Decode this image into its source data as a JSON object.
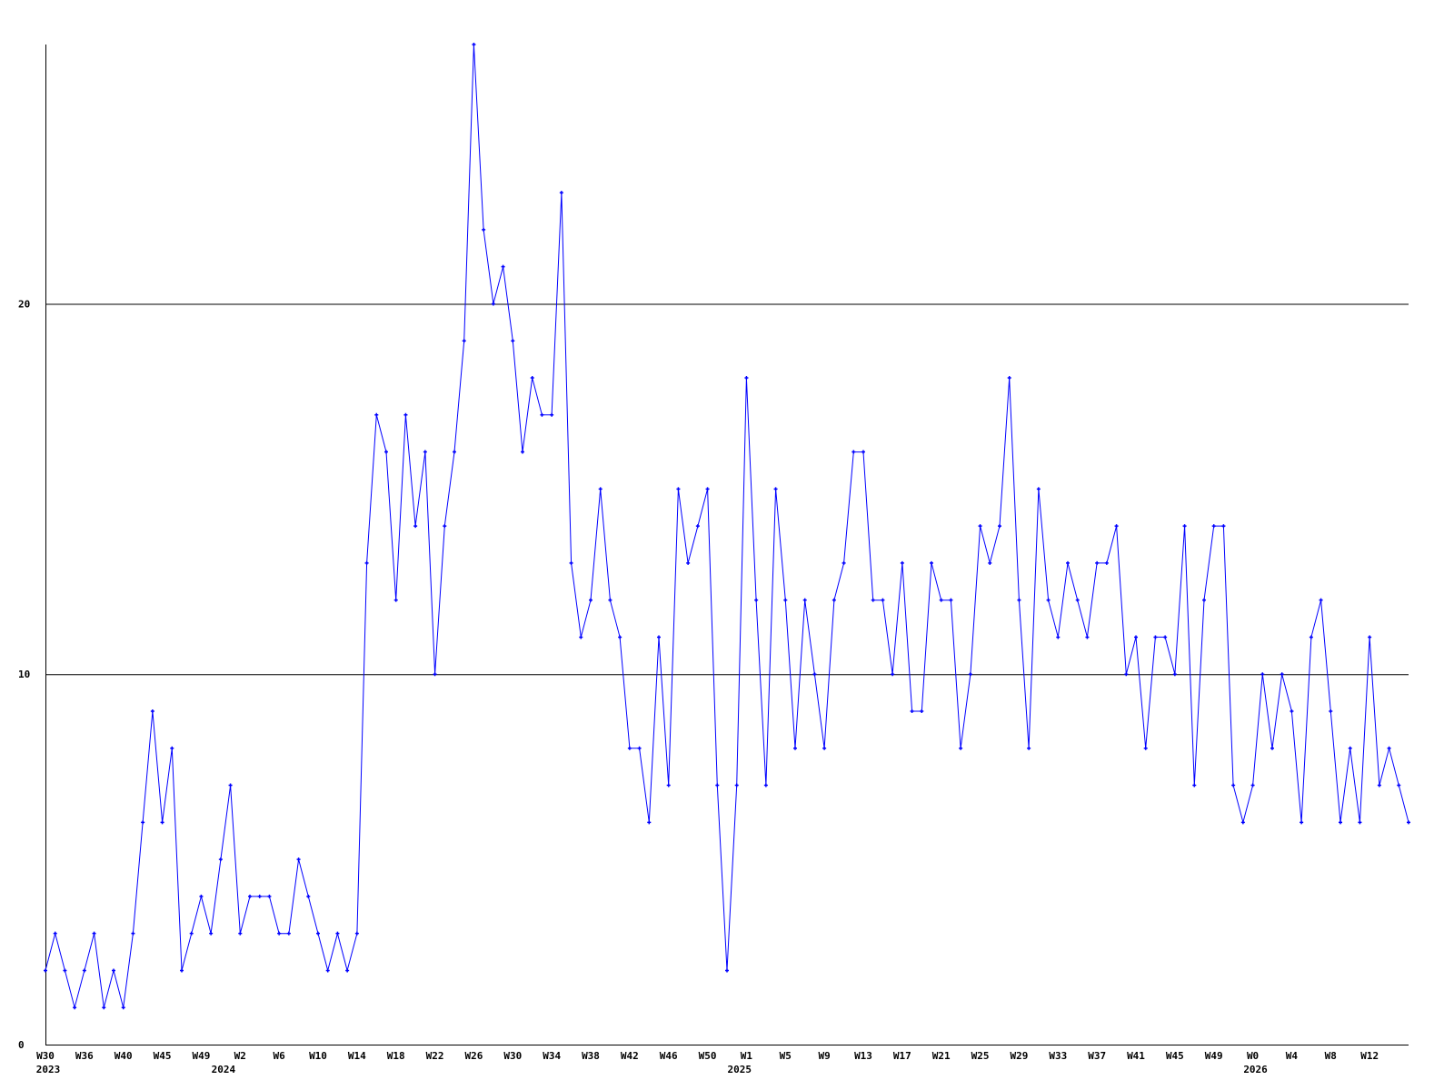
{
  "chart_data": {
    "type": "line",
    "title": "",
    "xlabel": "",
    "ylabel": "",
    "ylim": [
      0,
      27
    ],
    "yticks": [
      0,
      10,
      20
    ],
    "grid": "horizontal lines at 10 and 20",
    "line_color": "#0000ff",
    "axis_color": "#000000",
    "values": [
      2,
      3,
      2,
      1,
      2,
      3,
      1,
      2,
      1,
      3,
      6,
      9,
      6,
      8,
      2,
      3,
      4,
      3,
      5,
      7,
      3,
      4,
      4,
      4,
      3,
      3,
      5,
      4,
      3,
      2,
      3,
      2,
      3,
      13,
      17,
      16,
      12,
      17,
      14,
      16,
      10,
      14,
      16,
      19,
      27,
      22,
      20,
      21,
      19,
      16,
      18,
      17,
      17,
      23,
      13,
      11,
      12,
      15,
      12,
      11,
      8,
      8,
      6,
      11,
      7,
      15,
      13,
      14,
      15,
      7,
      2,
      7,
      18,
      12,
      7,
      15,
      12,
      8,
      12,
      10,
      8,
      12,
      13,
      16,
      16,
      12,
      12,
      10,
      13,
      9,
      9,
      13,
      12,
      12,
      8,
      10,
      14,
      13,
      14,
      18,
      12,
      8,
      15,
      12,
      11,
      13,
      12,
      11,
      13,
      13,
      14,
      10,
      11,
      8,
      11,
      11,
      10,
      14,
      7,
      12,
      14,
      14,
      7,
      6,
      7,
      10,
      8,
      10,
      9,
      6,
      11,
      12,
      9,
      6,
      8,
      6,
      11,
      7,
      8,
      7,
      6
    ],
    "xtick_labels": [
      {
        "index": 0,
        "label": "W30"
      },
      {
        "index": 4,
        "label": "W36"
      },
      {
        "index": 8,
        "label": "W40"
      },
      {
        "index": 12,
        "label": "W45"
      },
      {
        "index": 16,
        "label": "W49"
      },
      {
        "index": 20,
        "label": "W2"
      },
      {
        "index": 24,
        "label": "W6"
      },
      {
        "index": 28,
        "label": "W10"
      },
      {
        "index": 32,
        "label": "W14"
      },
      {
        "index": 36,
        "label": "W18"
      },
      {
        "index": 40,
        "label": "W22"
      },
      {
        "index": 44,
        "label": "W26"
      },
      {
        "index": 48,
        "label": "W30"
      },
      {
        "index": 52,
        "label": "W34"
      },
      {
        "index": 56,
        "label": "W38"
      },
      {
        "index": 60,
        "label": "W42"
      },
      {
        "index": 64,
        "label": "W46"
      },
      {
        "index": 68,
        "label": "W50"
      },
      {
        "index": 72,
        "label": "W1"
      },
      {
        "index": 76,
        "label": "W5"
      },
      {
        "index": 80,
        "label": "W9"
      },
      {
        "index": 84,
        "label": "W13"
      },
      {
        "index": 88,
        "label": "W17"
      },
      {
        "index": 92,
        "label": "W21"
      },
      {
        "index": 96,
        "label": "W25"
      },
      {
        "index": 100,
        "label": "W29"
      },
      {
        "index": 104,
        "label": "W33"
      },
      {
        "index": 108,
        "label": "W37"
      },
      {
        "index": 112,
        "label": "W41"
      },
      {
        "index": 116,
        "label": "W45"
      },
      {
        "index": 120,
        "label": "W49"
      },
      {
        "index": 124,
        "label": "W0"
      },
      {
        "index": 128,
        "label": "W4"
      },
      {
        "index": 132,
        "label": "W8"
      },
      {
        "index": 136,
        "label": "W12"
      }
    ],
    "year_labels": [
      {
        "index": 0,
        "label": "2023"
      },
      {
        "index": 18,
        "label": "2024"
      },
      {
        "index": 71,
        "label": "2025"
      },
      {
        "index": 124,
        "label": "2026"
      }
    ]
  }
}
